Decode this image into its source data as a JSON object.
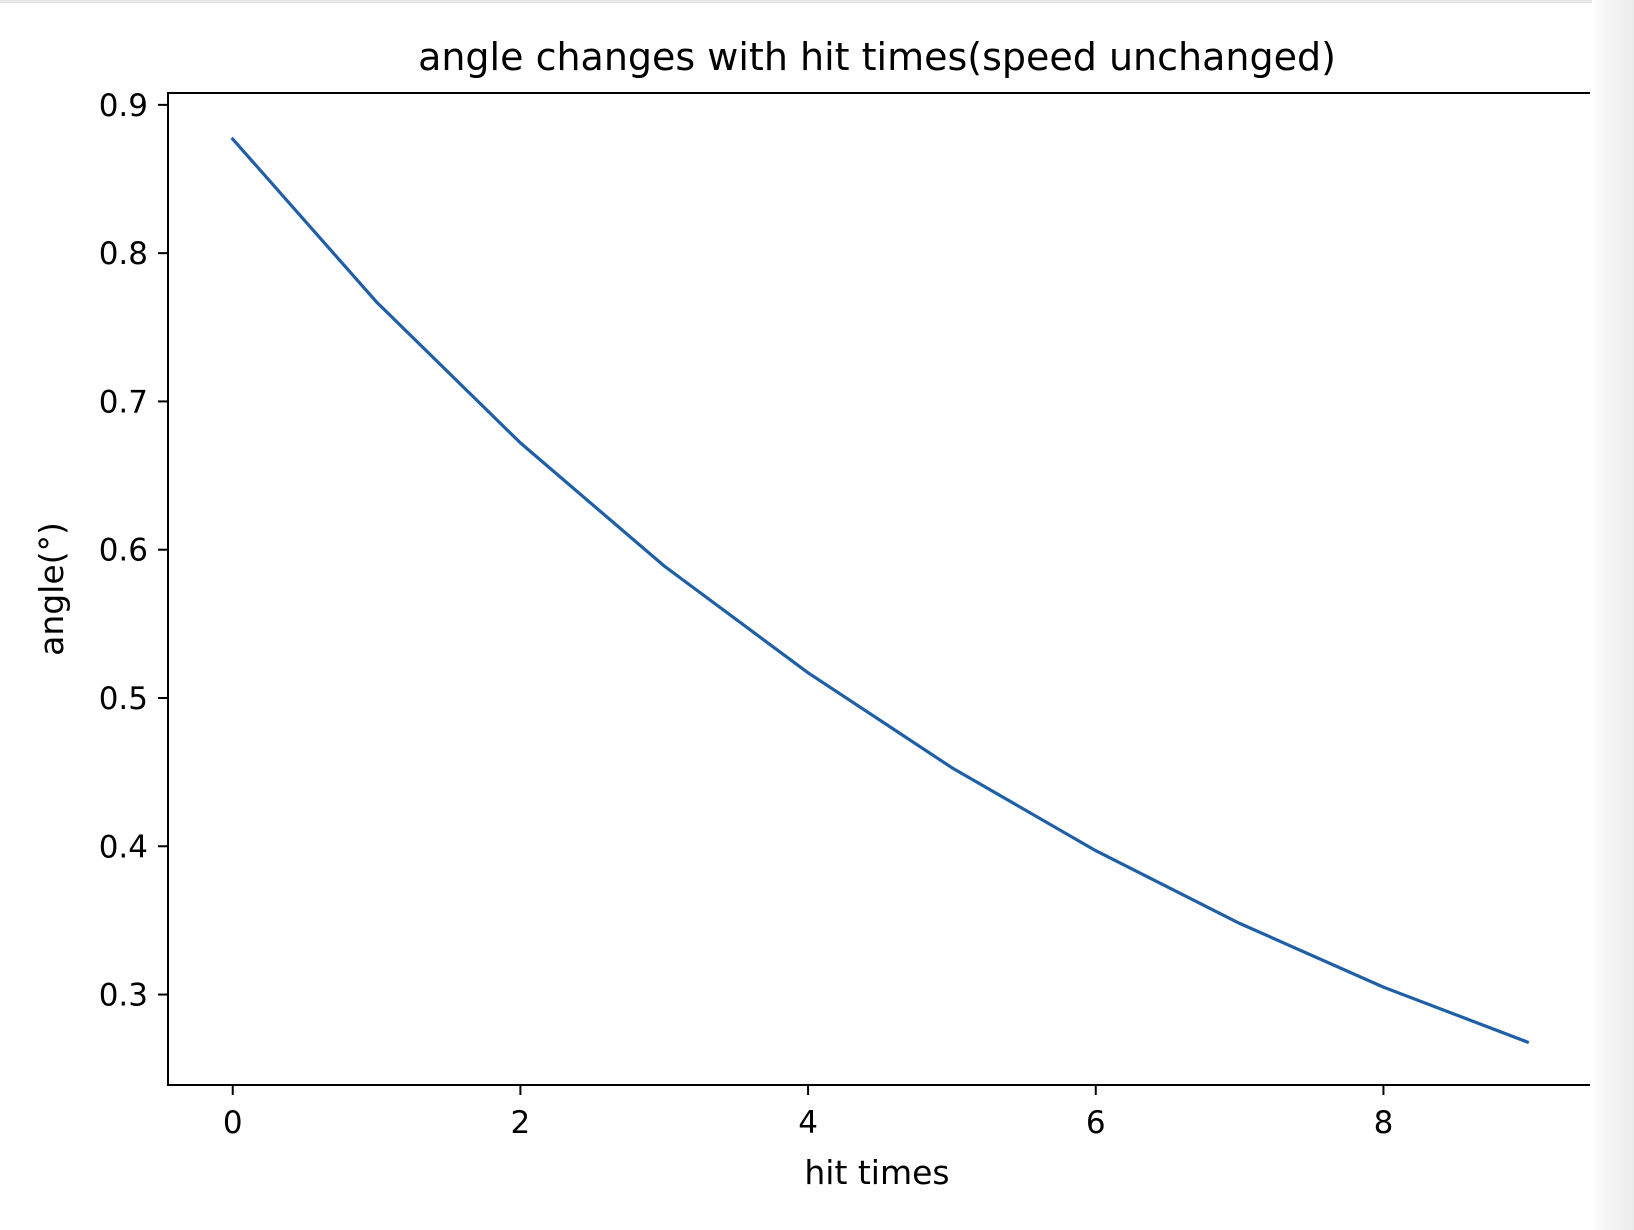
{
  "chart_data": {
    "type": "line",
    "title": "angle changes with hit times(speed unchanged)",
    "xlabel": "hit times",
    "ylabel": "angle(°)",
    "xlim": [
      -0.45,
      9.45
    ],
    "ylim": [
      0.239,
      0.908
    ],
    "xticks": [
      0,
      2,
      4,
      6,
      8
    ],
    "yticks": [
      0.3,
      0.4,
      0.5,
      0.6,
      0.7,
      0.8,
      0.9
    ],
    "xtick_labels": [
      "0",
      "2",
      "4",
      "6",
      "8"
    ],
    "ytick_labels": [
      "0.3",
      "0.4",
      "0.5",
      "0.6",
      "0.7",
      "0.8",
      "0.9"
    ],
    "grid": false,
    "series": [
      {
        "color": "#1f5fa6",
        "x": [
          0,
          1,
          2,
          3,
          4,
          5,
          6,
          7,
          8,
          9
        ],
        "y": [
          0.877,
          0.767,
          0.672,
          0.589,
          0.517,
          0.453,
          0.397,
          0.348,
          0.305,
          0.268
        ]
      }
    ]
  }
}
